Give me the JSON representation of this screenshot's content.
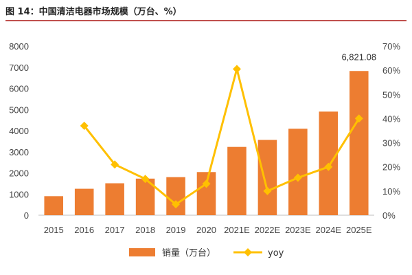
{
  "header": {
    "title": "图 14：中国清洁电器市场规模（万台、%）"
  },
  "chart_data": {
    "type": "bar",
    "categories": [
      "2015",
      "2016",
      "2017",
      "2018",
      "2019",
      "2020",
      "2021E",
      "2022E",
      "2023E",
      "2024E",
      "2025E"
    ],
    "series": [
      {
        "name": "销量（万台）",
        "type": "bar",
        "axis": "left",
        "color": "#ED7D31",
        "values": [
          900,
          1250,
          1510,
          1730,
          1800,
          2040,
          3230,
          3560,
          4090,
          4900,
          6821.08
        ]
      },
      {
        "name": "yoy",
        "type": "line",
        "axis": "right",
        "color": "#FFC000",
        "values": [
          null,
          0.37,
          0.21,
          0.15,
          0.045,
          0.13,
          0.605,
          0.1,
          0.155,
          0.2,
          0.4
        ]
      }
    ],
    "y_left": {
      "range": [
        0,
        8000
      ],
      "ticks": [
        "0",
        "1000",
        "2000",
        "3000",
        "4000",
        "5000",
        "6000",
        "7000",
        "8000"
      ]
    },
    "y_right": {
      "range": [
        0,
        0.7
      ],
      "ticks": [
        "0%",
        "10%",
        "20%",
        "30%",
        "40%",
        "50%",
        "60%",
        "70%"
      ]
    },
    "annotations": [
      {
        "category": "2025E",
        "text": "6,821.08"
      }
    ],
    "grid": false,
    "legend": {
      "placement": "bottom"
    }
  }
}
